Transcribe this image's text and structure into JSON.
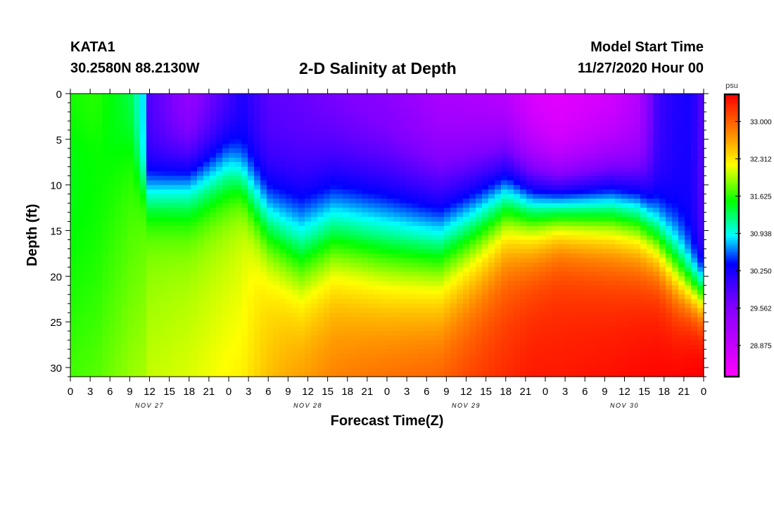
{
  "header": {
    "station": "KATA1",
    "coords": "30.2580N 88.2130W",
    "title": "2-D Salinity at Depth",
    "start_label": "Model Start Time",
    "start_value": "11/27/2020 Hour 00"
  },
  "chart_data": {
    "type": "heatmap",
    "title": "2-D Salinity at Depth",
    "xlabel": "Forecast Time(Z)",
    "ylabel": "Depth (ft)",
    "x_hours": [
      0,
      96
    ],
    "x_tick_labels": [
      "0",
      "3",
      "6",
      "9",
      "12",
      "15",
      "18",
      "21",
      "0",
      "3",
      "6",
      "9",
      "12",
      "15",
      "18",
      "21",
      "0",
      "3",
      "6",
      "9",
      "12",
      "15",
      "18",
      "21",
      "0",
      "3",
      "6",
      "9",
      "12",
      "15",
      "18",
      "21",
      "0"
    ],
    "date_labels": [
      {
        "text": "NOV 27",
        "hour": 12
      },
      {
        "text": "NOV 28",
        "hour": 36
      },
      {
        "text": "NOV 29",
        "hour": 60
      },
      {
        "text": "NOV 30",
        "hour": 84
      }
    ],
    "y_ticks": [
      0,
      5,
      10,
      15,
      20,
      25,
      30
    ],
    "ylim": [
      0,
      31
    ],
    "y_inverted": true,
    "colorbar": {
      "unit": "psu",
      "ticks": [
        "33.000",
        "32.312",
        "31.625",
        "30.938",
        "30.250",
        "29.562",
        "28.875"
      ],
      "range": [
        28.3,
        33.5
      ]
    },
    "profiles": [
      {
        "hour": 0,
        "surface": 31.6,
        "bottom": 31.4,
        "halocline_ft": 6,
        "width_ft": 3
      },
      {
        "hour": 4,
        "surface": 31.65,
        "bottom": 31.45,
        "halocline_ft": 6,
        "width_ft": 3
      },
      {
        "hour": 9,
        "surface": 31.3,
        "bottom": 31.6,
        "halocline_ft": 4,
        "width_ft": 3
      },
      {
        "hour": 11,
        "surface": 30.9,
        "bottom": 31.7,
        "halocline_ft": 9.5,
        "width_ft": 1.5
      },
      {
        "hour": 12,
        "surface": 29.9,
        "bottom": 31.8,
        "halocline_ft": 10.5,
        "width_ft": 2
      },
      {
        "hour": 18,
        "surface": 29.35,
        "bottom": 31.85,
        "halocline_ft": 9.5,
        "width_ft": 2.5
      },
      {
        "hour": 24,
        "surface": 29.9,
        "bottom": 31.95,
        "halocline_ft": 8,
        "width_ft": 2.5
      },
      {
        "hour": 26,
        "surface": 30.2,
        "bottom": 32.0,
        "halocline_ft": 9,
        "width_ft": 2
      },
      {
        "hour": 30,
        "surface": 29.8,
        "bottom": 32.3,
        "halocline_ft": 13.5,
        "width_ft": 3
      },
      {
        "hour": 35,
        "surface": 29.7,
        "bottom": 32.55,
        "halocline_ft": 16,
        "width_ft": 4
      },
      {
        "hour": 40,
        "surface": 29.55,
        "bottom": 32.65,
        "halocline_ft": 14,
        "width_ft": 4
      },
      {
        "hour": 48,
        "surface": 29.35,
        "bottom": 32.8,
        "halocline_ft": 15,
        "width_ft": 4.5
      },
      {
        "hour": 56,
        "surface": 29.05,
        "bottom": 32.9,
        "halocline_ft": 15.5,
        "width_ft": 4.5
      },
      {
        "hour": 62,
        "surface": 28.95,
        "bottom": 33.0,
        "halocline_ft": 13,
        "width_ft": 4
      },
      {
        "hour": 66,
        "surface": 28.85,
        "bottom": 33.05,
        "halocline_ft": 11,
        "width_ft": 3.5
      },
      {
        "hour": 70,
        "surface": 28.6,
        "bottom": 33.15,
        "halocline_ft": 12,
        "width_ft": 3
      },
      {
        "hour": 74,
        "surface": 28.55,
        "bottom": 33.15,
        "halocline_ft": 12,
        "width_ft": 2.5
      },
      {
        "hour": 82,
        "surface": 28.7,
        "bottom": 33.2,
        "halocline_ft": 12,
        "width_ft": 3
      },
      {
        "hour": 86,
        "surface": 29.0,
        "bottom": 33.25,
        "halocline_ft": 13,
        "width_ft": 3
      },
      {
        "hour": 89,
        "surface": 30.0,
        "bottom": 33.3,
        "halocline_ft": 16,
        "width_ft": 2.5
      },
      {
        "hour": 92,
        "surface": 30.2,
        "bottom": 33.35,
        "halocline_ft": 19,
        "width_ft": 2.5
      },
      {
        "hour": 94,
        "surface": 30.25,
        "bottom": 33.4,
        "halocline_ft": 21,
        "width_ft": 2
      },
      {
        "hour": 96,
        "surface": 29.8,
        "bottom": 33.45,
        "halocline_ft": 22,
        "width_ft": 2
      }
    ]
  }
}
